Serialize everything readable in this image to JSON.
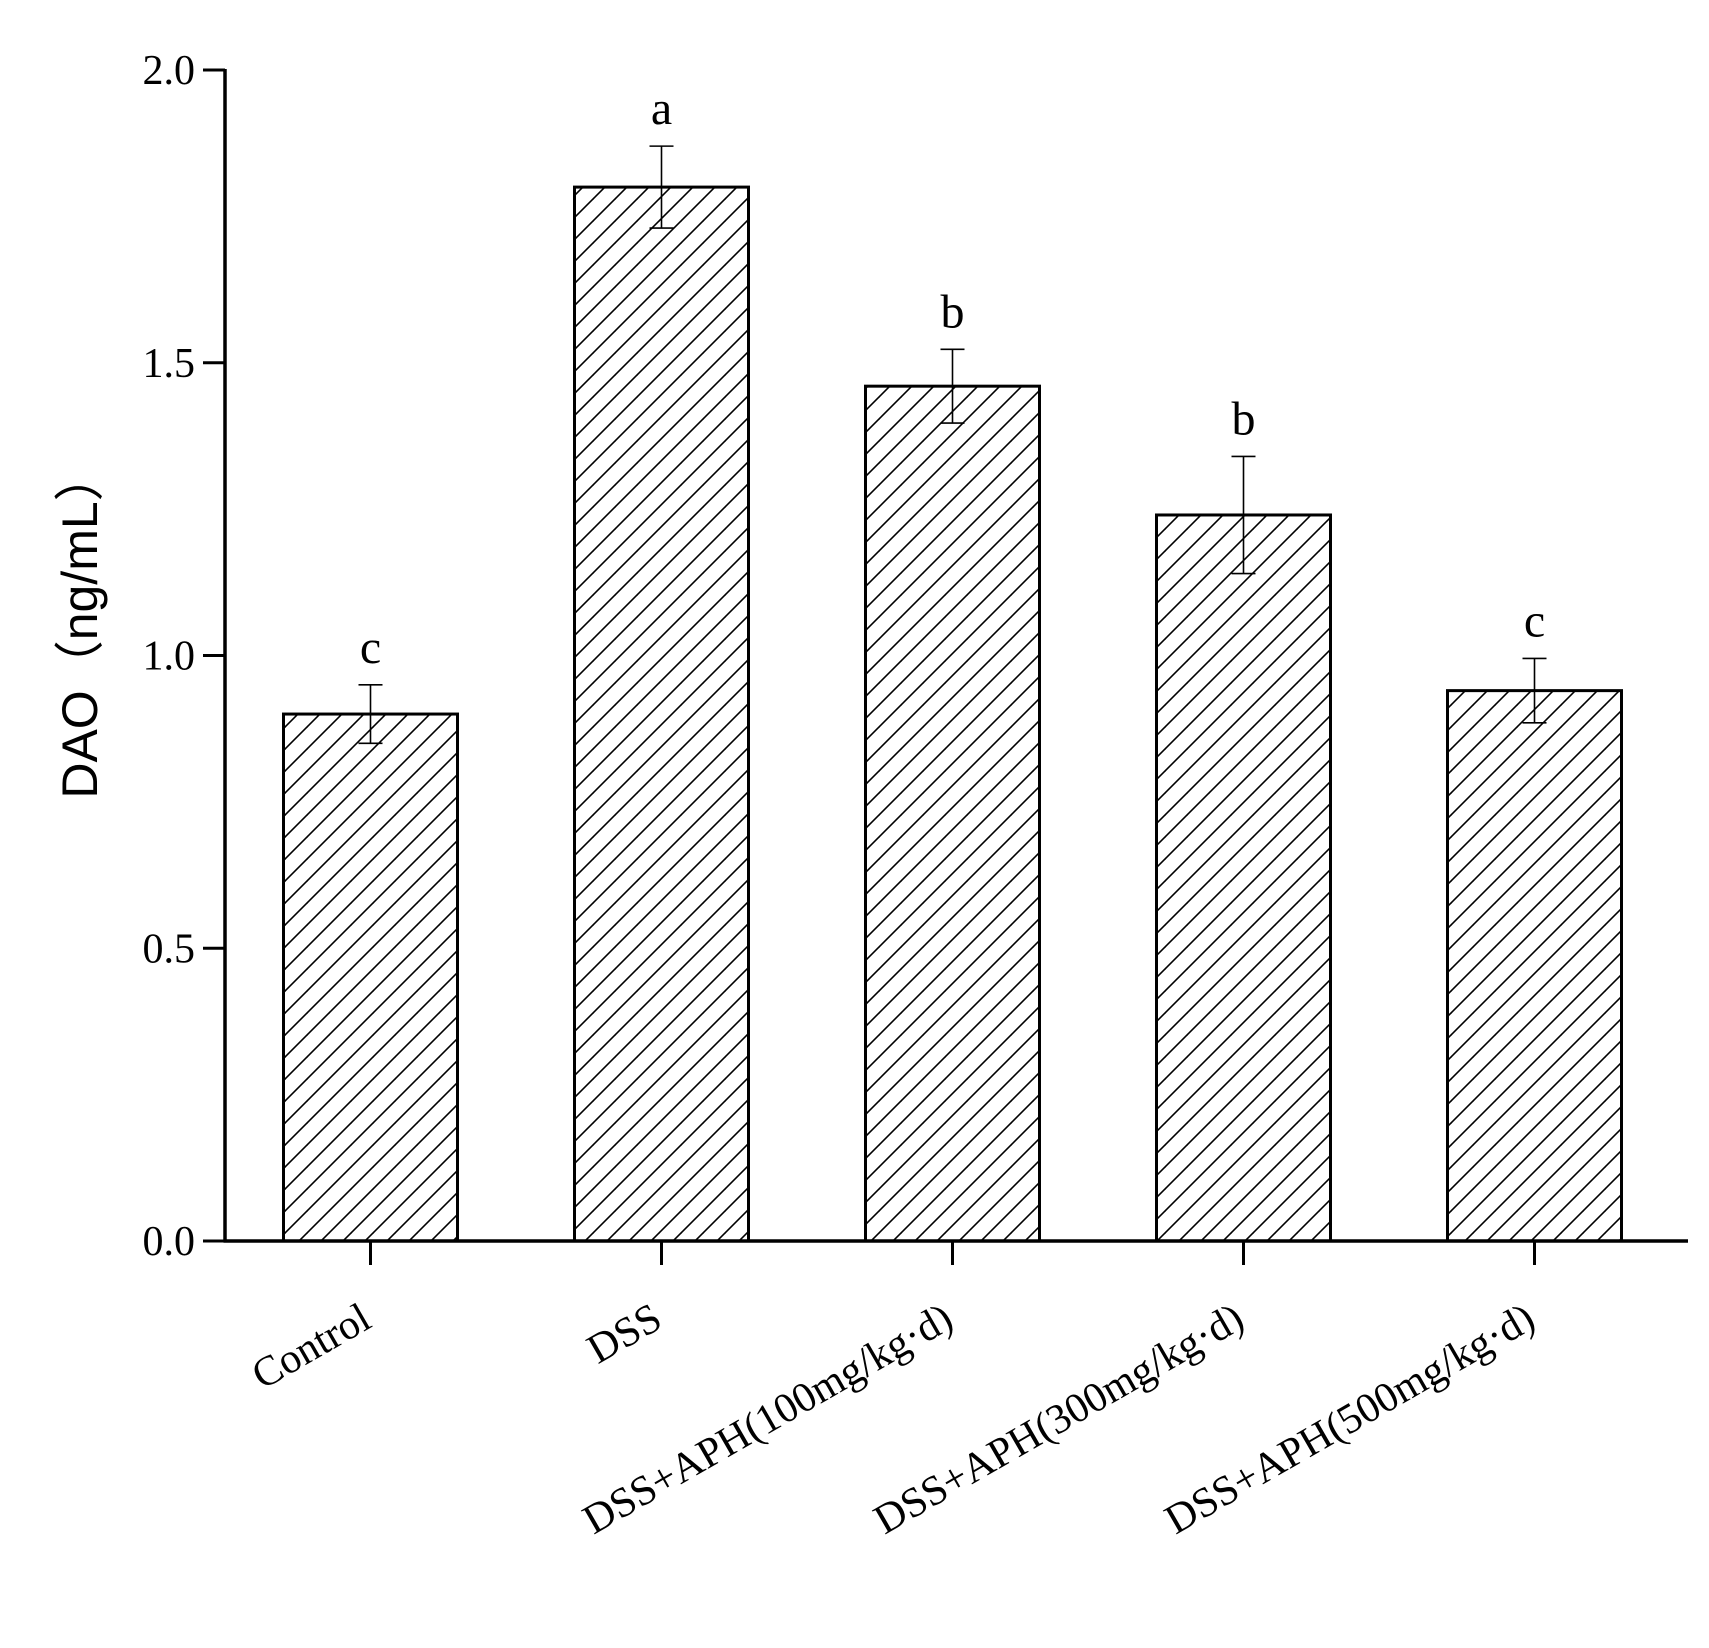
{
  "chart_data": {
    "type": "bar",
    "title": "",
    "xlabel": "",
    "ylabel": "DAO（ng/mL）",
    "ylim": [
      0,
      2.0
    ],
    "yticks": [
      "0.0",
      "0.5",
      "1.0",
      "1.5",
      "2.0"
    ],
    "grid": false,
    "categories": [
      "Control",
      "DSS",
      "DSS+APH(100mg/kg·d)",
      "DSS+APH(300mg/kg·d)",
      "DSS+APH(500mg/kg·d)"
    ],
    "values": [
      0.9,
      1.8,
      1.46,
      1.24,
      0.94
    ],
    "errors": [
      0.05,
      0.07,
      0.063,
      0.1,
      0.055
    ],
    "significance_letters": [
      "c",
      "a",
      "b",
      "b",
      "c"
    ],
    "bar_fill": "hatched-diagonal",
    "colors": {
      "bar_edge": "#000000",
      "hatch": "#000000",
      "background": "#ffffff"
    }
  }
}
